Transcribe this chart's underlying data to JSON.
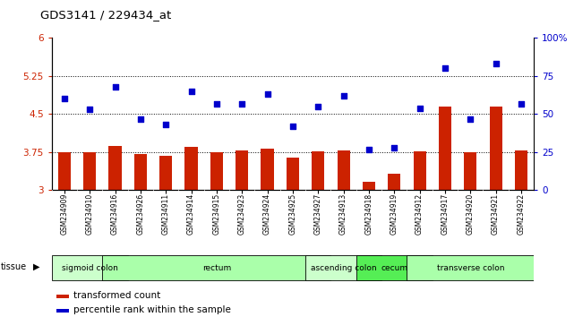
{
  "title": "GDS3141 / 229434_at",
  "samples": [
    "GSM234909",
    "GSM234910",
    "GSM234916",
    "GSM234926",
    "GSM234911",
    "GSM234914",
    "GSM234915",
    "GSM234923",
    "GSM234924",
    "GSM234925",
    "GSM234927",
    "GSM234913",
    "GSM234918",
    "GSM234919",
    "GSM234912",
    "GSM234917",
    "GSM234920",
    "GSM234921",
    "GSM234922"
  ],
  "bar_values": [
    3.75,
    3.75,
    3.87,
    3.72,
    3.67,
    3.85,
    3.75,
    3.79,
    3.82,
    3.65,
    3.77,
    3.79,
    3.17,
    3.32,
    3.77,
    4.65,
    3.75,
    4.65,
    3.79
  ],
  "dot_values": [
    60,
    53,
    68,
    47,
    43,
    65,
    57,
    57,
    63,
    42,
    55,
    62,
    27,
    28,
    54,
    80,
    47,
    83,
    57
  ],
  "ylim_left": [
    3.0,
    6.0
  ],
  "ylim_right": [
    0,
    100
  ],
  "yticks_left": [
    3.0,
    3.75,
    4.5,
    5.25,
    6.0
  ],
  "yticks_right": [
    0,
    25,
    50,
    75,
    100
  ],
  "ytick_labels_left": [
    "3",
    "3.75",
    "4.5",
    "5.25",
    "6"
  ],
  "ytick_labels_right": [
    "0",
    "25",
    "50",
    "75",
    "100%"
  ],
  "hlines": [
    3.75,
    4.5,
    5.25
  ],
  "bar_color": "#cc2200",
  "dot_color": "#0000cc",
  "tissue_groups": [
    {
      "label": "sigmoid colon",
      "start": 0,
      "end": 2,
      "color": "#ccffcc"
    },
    {
      "label": "rectum",
      "start": 2,
      "end": 10,
      "color": "#aaffaa"
    },
    {
      "label": "ascending colon",
      "start": 10,
      "end": 12,
      "color": "#ccffcc"
    },
    {
      "label": "cecum",
      "start": 12,
      "end": 14,
      "color": "#55ee55"
    },
    {
      "label": "transverse colon",
      "start": 14,
      "end": 18,
      "color": "#aaffaa"
    }
  ],
  "tissue_label": "tissue",
  "legend_bar": "transformed count",
  "legend_dot": "percentile rank within the sample",
  "left_tick_color": "#cc2200",
  "right_tick_color": "#0000cc",
  "xticklabel_bg": "#cccccc",
  "figsize": [
    6.41,
    3.54
  ],
  "dpi": 100
}
